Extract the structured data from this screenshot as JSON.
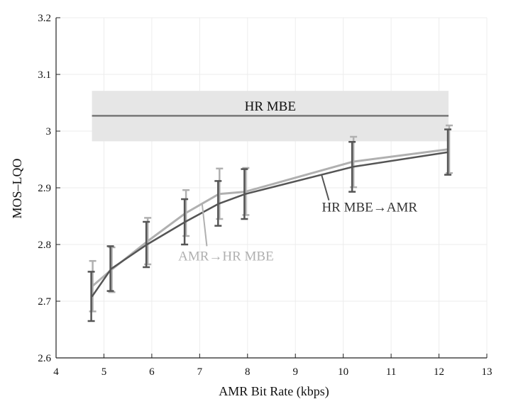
{
  "chart_data": {
    "type": "line",
    "xlabel": "AMR Bit Rate (kbps)",
    "ylabel": "MOS–LQO",
    "xlim": [
      4,
      13
    ],
    "ylim": [
      2.6,
      3.2
    ],
    "x_ticks": [
      "4",
      "5",
      "6",
      "7",
      "8",
      "9",
      "10",
      "11",
      "12",
      "13"
    ],
    "y_ticks": [
      "2.6",
      "2.7",
      "2.8",
      "2.9",
      "3",
      "3.1",
      "3.2"
    ],
    "grid": true,
    "x": [
      4.75,
      5.15,
      5.9,
      6.7,
      7.4,
      7.95,
      10.2,
      12.2
    ],
    "series": [
      {
        "name": "HR MBE→AMR",
        "color": "#555555",
        "values": [
          2.708,
          2.757,
          2.8,
          2.84,
          2.872,
          2.889,
          2.937,
          2.963
        ],
        "err_low": [
          2.665,
          2.718,
          2.76,
          2.8,
          2.833,
          2.845,
          2.893,
          2.923
        ],
        "err_high": [
          2.752,
          2.797,
          2.84,
          2.88,
          2.912,
          2.933,
          2.981,
          3.003
        ]
      },
      {
        "name": "AMR→HR MBE",
        "color": "#b0b0b0",
        "values": [
          2.726,
          2.755,
          2.805,
          2.855,
          2.889,
          2.893,
          2.946,
          2.968
        ],
        "err_low": [
          2.682,
          2.716,
          2.765,
          2.815,
          2.845,
          2.852,
          2.901,
          2.926
        ],
        "err_high": [
          2.771,
          2.795,
          2.847,
          2.896,
          2.934,
          2.935,
          2.99,
          3.01
        ]
      }
    ],
    "reference_band": {
      "label": "HR MBE",
      "x_range": [
        4.75,
        12.2
      ],
      "mean": 3.027,
      "low": 2.982,
      "high": 3.071,
      "fill": "#e6e6e6",
      "line_color": "#777777"
    },
    "annotations": [
      {
        "text": "HR MBE→AMR",
        "x": 10.55,
        "y": 2.858,
        "series": 0
      },
      {
        "text": "AMR→HR MBE",
        "x": 7.55,
        "y": 2.772,
        "series": 1
      }
    ]
  }
}
